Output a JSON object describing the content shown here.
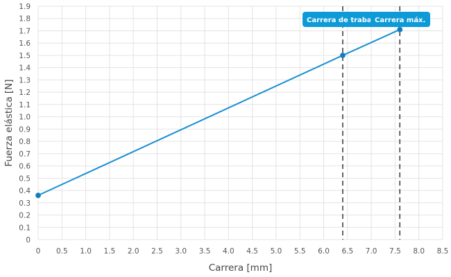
{
  "chart_data": {
    "type": "line",
    "xlabel": "Carrera [mm]",
    "ylabel": "Fuerza elástica [N]",
    "xlim": [
      0,
      8.5
    ],
    "ylim": [
      0,
      1.9
    ],
    "xticks": [
      "0",
      "0.5",
      "1.0",
      "1.5",
      "2.0",
      "2.5",
      "3.0",
      "3.5",
      "4.0",
      "4.5",
      "5.0",
      "5.5",
      "6.0",
      "6.5",
      "7.0",
      "7.5",
      "8.0",
      "8.5"
    ],
    "yticks": [
      "0",
      "0.1",
      "0.2",
      "0.3",
      "0.4",
      "0.5",
      "0.6",
      "0.7",
      "0.8",
      "0.9",
      "1.0",
      "1.1",
      "1.2",
      "1.3",
      "1.4",
      "1.5",
      "1.6",
      "1.7",
      "1.8",
      "1.9"
    ],
    "grid": true,
    "series": [
      {
        "x": [
          0,
          6.4,
          7.6
        ],
        "y": [
          0.36,
          1.5,
          1.71
        ]
      }
    ],
    "markers": [
      {
        "x": 6.4,
        "y": 1.5,
        "label": "Carrera de trabajo"
      },
      {
        "x": 7.6,
        "y": 1.71,
        "label": "Carrera máx."
      }
    ],
    "colors": {
      "line": "#1a8fd0",
      "point": "#1a77b8",
      "label_bg": "#0d9ad6",
      "marker_line": "#333333"
    }
  }
}
